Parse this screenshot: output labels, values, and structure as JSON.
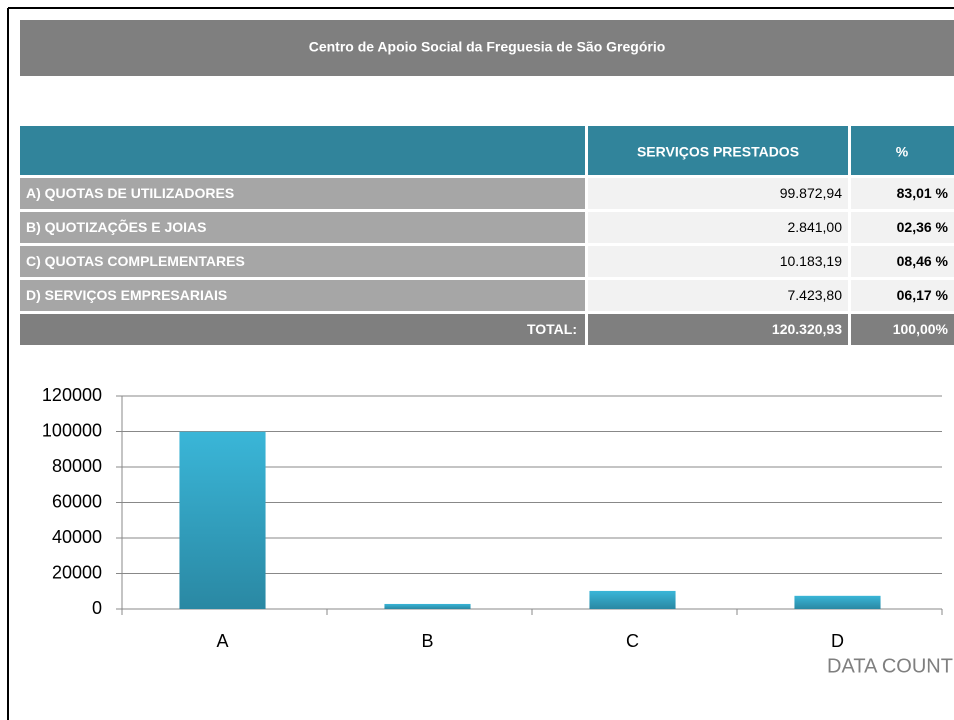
{
  "header": {
    "title": "Centro de Apoio Social da Freguesia de São Gregório"
  },
  "table": {
    "columns": [
      "SERVIÇOS PRESTADOS",
      "%"
    ],
    "rows": [
      [
        "A) QUOTAS DE UTILIZADORES",
        "99.872,94",
        "83,01 %"
      ],
      [
        "B) QUOTIZAÇÕES E JOIAS",
        "2.841,00",
        "02,36 %"
      ],
      [
        "C) QUOTAS COMPLEMENTARES",
        "10.183,19",
        "08,46 %"
      ],
      [
        "D) SERVIÇOS EMPRESARIAIS",
        "7.423,80",
        "06,17 %"
      ]
    ],
    "total": [
      "TOTAL:",
      "120.320,93",
      "100,00%"
    ]
  },
  "chart_data": {
    "type": "bar",
    "categories": [
      "A",
      "B",
      "C",
      "D"
    ],
    "values": [
      99872.94,
      2841,
      10183.19,
      7423.8
    ],
    "color": "#3ab6d8",
    "ylim": [
      0,
      120000
    ],
    "yticks": [
      0,
      20000,
      40000,
      60000,
      80000,
      100000,
      120000
    ],
    "grid": true
  },
  "logo": "DATA COUNT"
}
